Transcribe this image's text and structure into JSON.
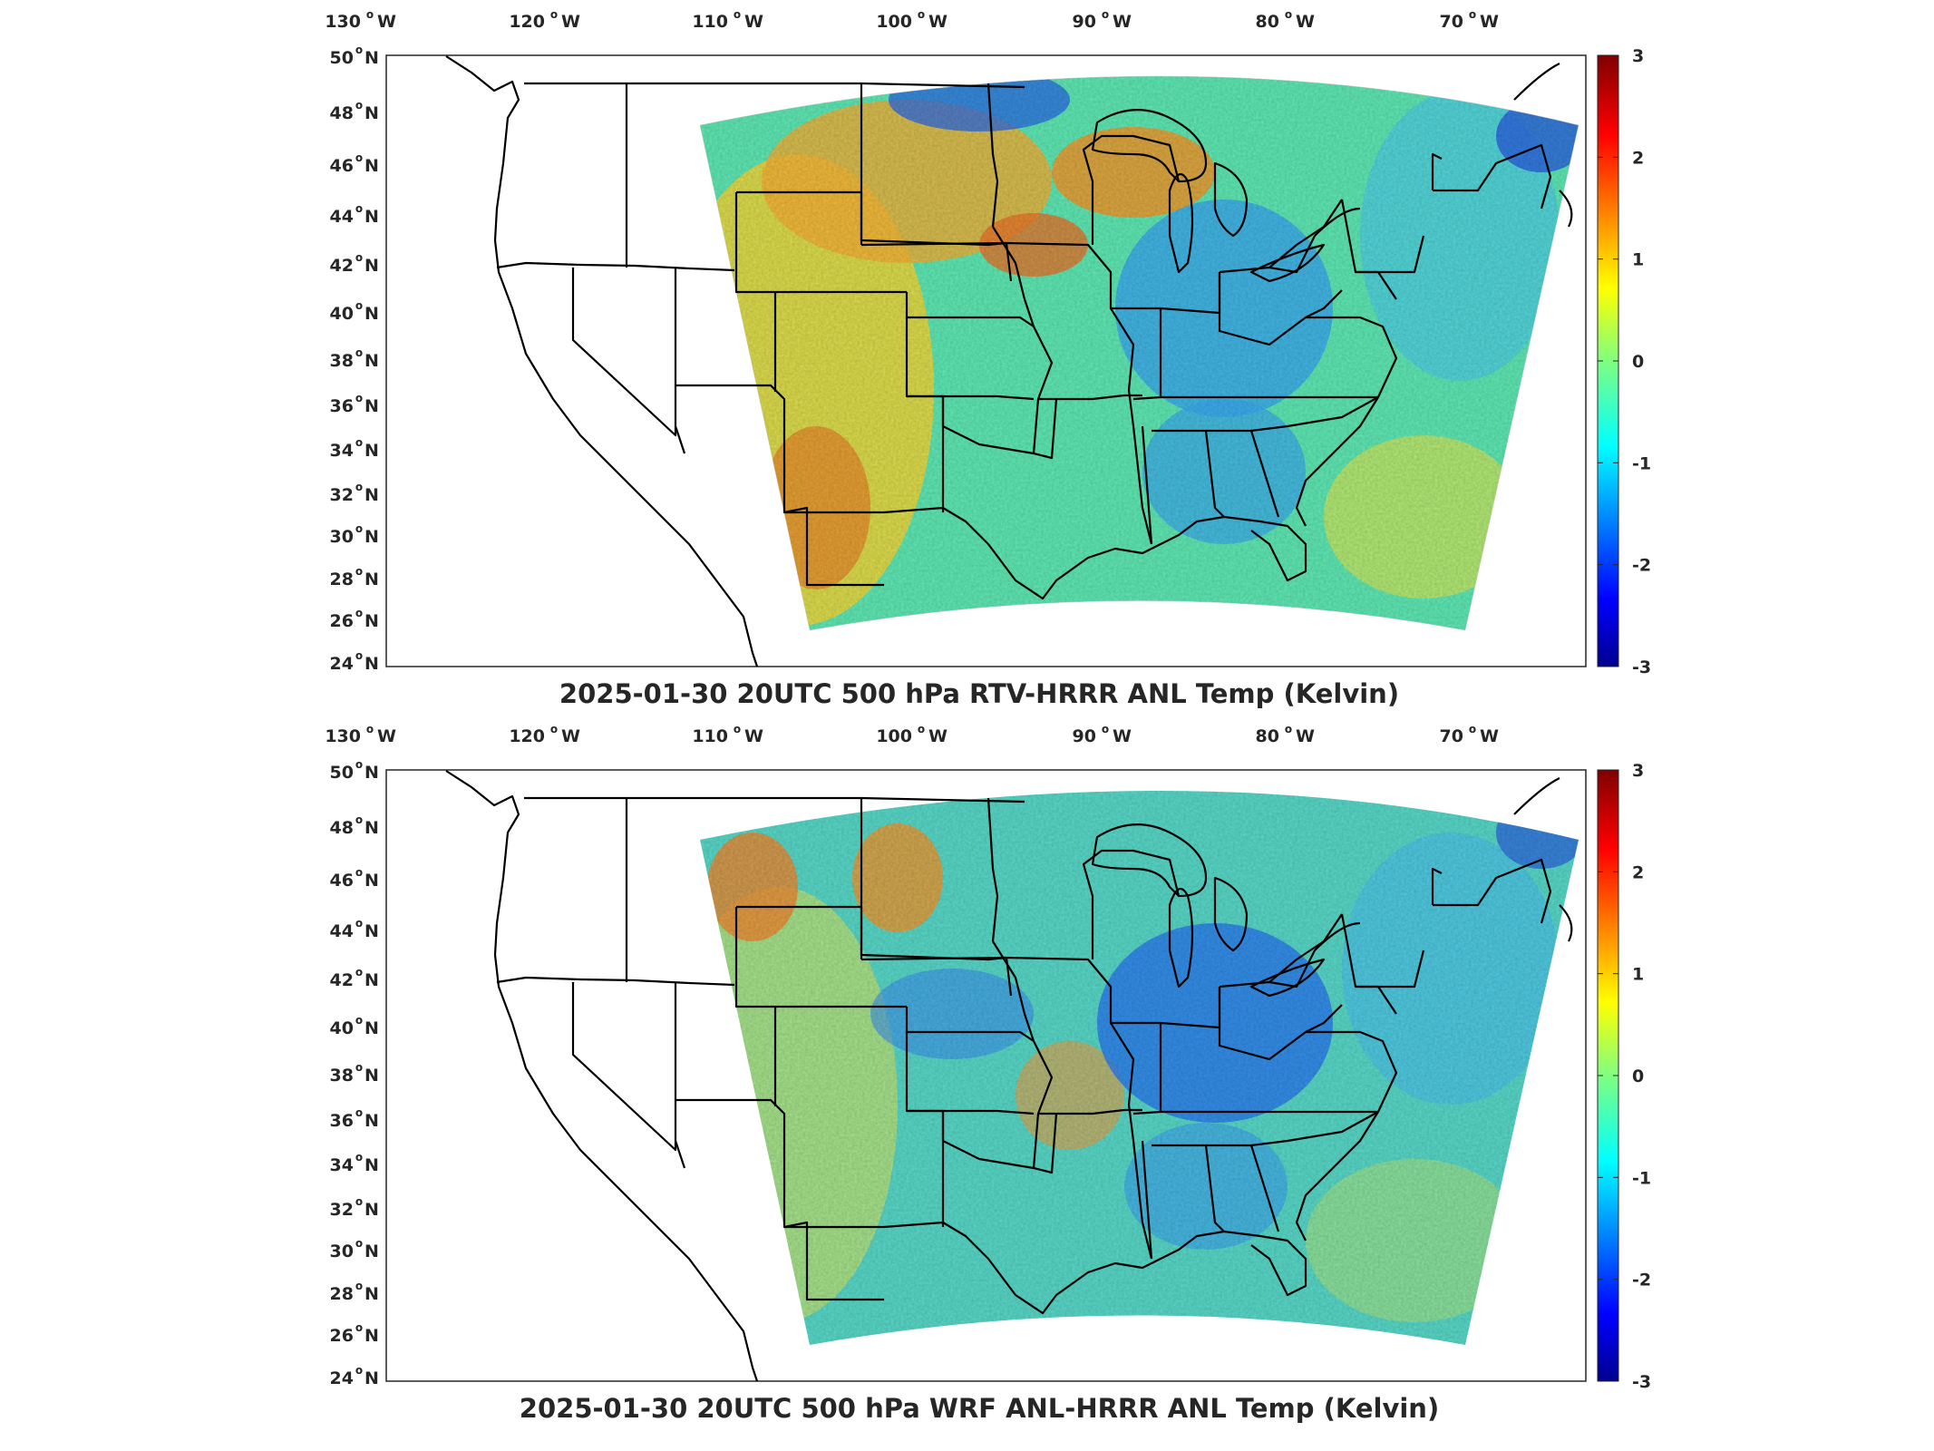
{
  "colors": {
    "low": "#00008f",
    "mid": "#00ff7f",
    "high": "#800000",
    "border": "#000000"
  },
  "panels": [
    {
      "title": "2025-01-30 20UTC 500 hPa RTV-HRRR ANL Temp (Kelvin)",
      "lon_labels": [
        "130",
        "120",
        "110",
        "100",
        "90",
        "80",
        "70"
      ],
      "lon_suffix": "W",
      "lat_labels": [
        "50",
        "48",
        "46",
        "44",
        "42",
        "40",
        "38",
        "36",
        "34",
        "32",
        "30",
        "28",
        "26",
        "24"
      ],
      "lat_suffix": "N",
      "colorbar": {
        "ticks": [
          "3",
          "2",
          "1",
          "0",
          "-1",
          "-2",
          "-3"
        ],
        "range": [
          -3,
          3
        ]
      },
      "field": {
        "western_warm": 0.9,
        "eastern_cool": -0.9
      }
    },
    {
      "title": "2025-01-30 20UTC 500 hPa WRF ANL-HRRR ANL Temp (Kelvin)",
      "lon_labels": [
        "130",
        "120",
        "110",
        "100",
        "90",
        "80",
        "70"
      ],
      "lon_suffix": "W",
      "lat_labels": [
        "50",
        "48",
        "46",
        "44",
        "42",
        "40",
        "38",
        "36",
        "34",
        "32",
        "30",
        "28",
        "26",
        "24"
      ],
      "lat_suffix": "N",
      "colorbar": {
        "ticks": [
          "3",
          "2",
          "1",
          "0",
          "-1",
          "-2",
          "-3"
        ],
        "range": [
          -3,
          3
        ]
      },
      "field": {
        "western_warm": 0.5,
        "eastern_cool": -1.2
      }
    }
  ]
}
